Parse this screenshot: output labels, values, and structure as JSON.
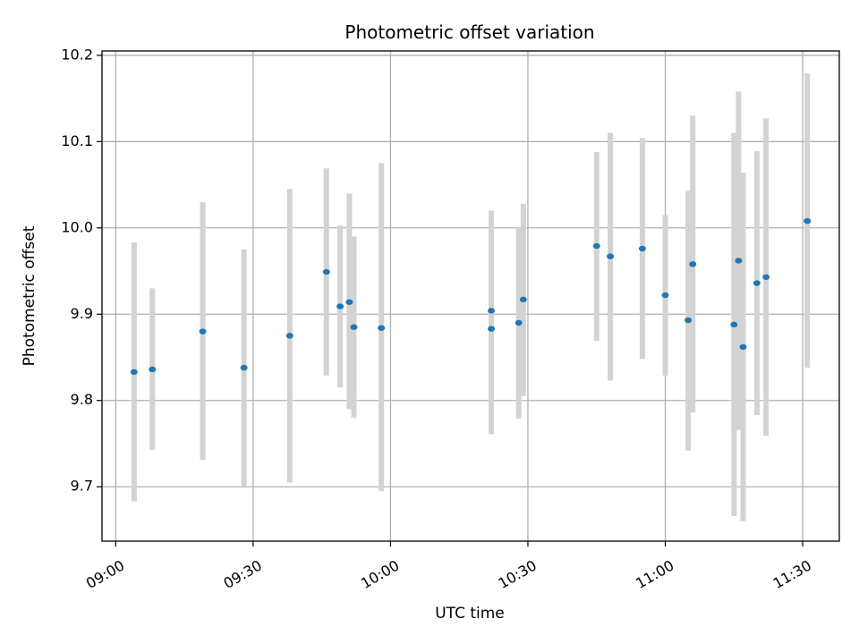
{
  "chart_data": {
    "type": "scatter",
    "title": "Photometric offset variation",
    "xlabel": "UTC time",
    "ylabel": "Photometric offset",
    "x_ticks": [
      "09:00",
      "09:30",
      "10:00",
      "10:30",
      "11:00",
      "11:30"
    ],
    "y_ticks": [
      "9.7",
      "9.8",
      "9.9",
      "10.0",
      "10.1",
      "10.2"
    ],
    "xlim": [
      "08:57",
      "11:38"
    ],
    "ylim": [
      9.637,
      10.205
    ],
    "grid": true,
    "marker_color": "#1f77b4",
    "errorbar_color": "#d3d3d3",
    "points": [
      {
        "t": "09:04",
        "y": 9.833,
        "lo": 9.683,
        "hi": 9.983
      },
      {
        "t": "09:08",
        "y": 9.836,
        "lo": 9.743,
        "hi": 9.93
      },
      {
        "t": "09:19",
        "y": 9.88,
        "lo": 9.731,
        "hi": 10.03
      },
      {
        "t": "09:28",
        "y": 9.838,
        "lo": 9.701,
        "hi": 9.975
      },
      {
        "t": "09:38",
        "y": 9.875,
        "lo": 9.705,
        "hi": 10.045
      },
      {
        "t": "09:46",
        "y": 9.949,
        "lo": 9.829,
        "hi": 10.069
      },
      {
        "t": "09:49",
        "y": 9.909,
        "lo": 9.815,
        "hi": 10.003
      },
      {
        "t": "09:51",
        "y": 9.914,
        "lo": 9.79,
        "hi": 10.04
      },
      {
        "t": "09:52",
        "y": 9.885,
        "lo": 9.78,
        "hi": 9.99
      },
      {
        "t": "09:58",
        "y": 9.884,
        "lo": 9.695,
        "hi": 10.075
      },
      {
        "t": "10:22",
        "y": 9.883,
        "lo": 9.761,
        "hi": 10.005
      },
      {
        "t": "10:22",
        "y": 9.904,
        "lo": 9.789,
        "hi": 10.02
      },
      {
        "t": "10:28",
        "y": 9.89,
        "lo": 9.779,
        "hi": 10.0
      },
      {
        "t": "10:29",
        "y": 9.917,
        "lo": 9.805,
        "hi": 10.028
      },
      {
        "t": "10:45",
        "y": 9.979,
        "lo": 9.869,
        "hi": 10.088
      },
      {
        "t": "10:48",
        "y": 9.967,
        "lo": 9.823,
        "hi": 10.11
      },
      {
        "t": "10:55",
        "y": 9.976,
        "lo": 9.848,
        "hi": 10.104
      },
      {
        "t": "11:00",
        "y": 9.922,
        "lo": 9.829,
        "hi": 10.015
      },
      {
        "t": "11:05",
        "y": 9.893,
        "lo": 9.742,
        "hi": 10.043
      },
      {
        "t": "11:06",
        "y": 9.958,
        "lo": 9.786,
        "hi": 10.13
      },
      {
        "t": "11:15",
        "y": 9.888,
        "lo": 9.666,
        "hi": 10.11
      },
      {
        "t": "11:16",
        "y": 9.962,
        "lo": 9.766,
        "hi": 10.158
      },
      {
        "t": "11:17",
        "y": 9.862,
        "lo": 9.66,
        "hi": 10.064
      },
      {
        "t": "11:20",
        "y": 9.936,
        "lo": 9.783,
        "hi": 10.089
      },
      {
        "t": "11:22",
        "y": 9.943,
        "lo": 9.759,
        "hi": 10.127
      },
      {
        "t": "11:31",
        "y": 10.008,
        "lo": 9.838,
        "hi": 10.179
      }
    ]
  }
}
